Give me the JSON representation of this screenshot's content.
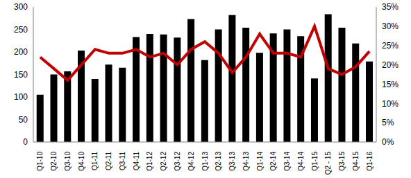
{
  "chart_data": {
    "type": "bar",
    "categories": [
      "Q1-10",
      "Q2-10",
      "Q3-10",
      "Q4-10",
      "Q1-11",
      "Q2-11",
      "Q3-11",
      "Q4-11",
      "Q1-12",
      "Q2-12",
      "Q3-12",
      "Q4-12",
      "Q1-13",
      "Q2-13",
      "Q3-13",
      "Q4-13",
      "Q1-14",
      "Q2-14",
      "Q3-14",
      "Q4-14",
      "Q1-15",
      "Q2 - 15",
      "Q3-15",
      "Q4-15",
      "Q1-16"
    ],
    "series": [
      {
        "type": "bar",
        "color": "#000000",
        "values": [
          105,
          150,
          157,
          203,
          140,
          172,
          165,
          233,
          240,
          239,
          232,
          273,
          182,
          250,
          282,
          254,
          198,
          241,
          250,
          235,
          141,
          284,
          254,
          219,
          179
        ]
      },
      {
        "type": "line",
        "color": "#c00000",
        "axis": "y2",
        "values": [
          22,
          19,
          16,
          20,
          24,
          23,
          23,
          24,
          22,
          23,
          20,
          24,
          26,
          23,
          18,
          22,
          28,
          23,
          23,
          22,
          30,
          19,
          17.5,
          19.5,
          23.5
        ]
      }
    ],
    "ylim": [
      0,
      300
    ],
    "yticks": [
      0,
      50,
      100,
      150,
      200,
      250,
      300
    ],
    "y2lim": [
      0,
      35
    ],
    "y2ticks": [
      {
        "value": 0,
        "label": "0%"
      },
      {
        "value": 5,
        "label": "5%"
      },
      {
        "value": 10,
        "label": "10%"
      },
      {
        "value": 15,
        "label": "15%"
      },
      {
        "value": 20,
        "label": "20%"
      },
      {
        "value": 25,
        "label": "25%"
      },
      {
        "value": 30,
        "label": "30%"
      },
      {
        "value": 35,
        "label": "35%"
      }
    ],
    "grid": false
  }
}
